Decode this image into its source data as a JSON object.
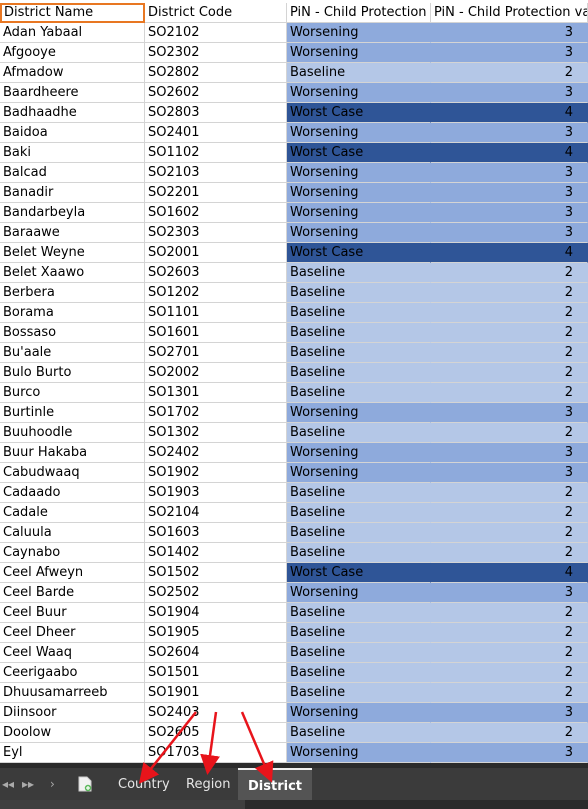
{
  "headers": [
    "District Name",
    "District Code",
    "PiN - Child Protection",
    "PiN - Child Protection valu"
  ],
  "severity_colors": {
    "Worsening": "#8eaadc",
    "Baseline": "#b4c7e7",
    "Worst Case": "#2f5597"
  },
  "rows": [
    {
      "name": "Adan Yabaal",
      "code": "SO2102",
      "status": "Worsening",
      "value": "3"
    },
    {
      "name": "Afgooye",
      "code": "SO2302",
      "status": "Worsening",
      "value": "3"
    },
    {
      "name": "Afmadow",
      "code": "SO2802",
      "status": "Baseline",
      "value": "2"
    },
    {
      "name": "Baardheere",
      "code": "SO2602",
      "status": "Worsening",
      "value": "3"
    },
    {
      "name": "Badhaadhe",
      "code": "SO2803",
      "status": "Worst Case",
      "value": "4"
    },
    {
      "name": "Baidoa",
      "code": "SO2401",
      "status": "Worsening",
      "value": "3"
    },
    {
      "name": "Baki",
      "code": "SO1102",
      "status": "Worst Case",
      "value": "4"
    },
    {
      "name": "Balcad",
      "code": "SO2103",
      "status": "Worsening",
      "value": "3"
    },
    {
      "name": "Banadir",
      "code": "SO2201",
      "status": "Worsening",
      "value": "3"
    },
    {
      "name": "Bandarbeyla",
      "code": "SO1602",
      "status": "Worsening",
      "value": "3"
    },
    {
      "name": "Baraawe",
      "code": "SO2303",
      "status": "Worsening",
      "value": "3"
    },
    {
      "name": "Belet Weyne",
      "code": "SO2001",
      "status": "Worst Case",
      "value": "4"
    },
    {
      "name": "Belet Xaawo",
      "code": "SO2603",
      "status": "Baseline",
      "value": "2"
    },
    {
      "name": "Berbera",
      "code": "SO1202",
      "status": "Baseline",
      "value": "2"
    },
    {
      "name": "Borama",
      "code": "SO1101",
      "status": "Baseline",
      "value": "2"
    },
    {
      "name": "Bossaso",
      "code": "SO1601",
      "status": "Baseline",
      "value": "2"
    },
    {
      "name": "Bu'aale",
      "code": "SO2701",
      "status": "Baseline",
      "value": "2"
    },
    {
      "name": "Bulo Burto",
      "code": "SO2002",
      "status": "Baseline",
      "value": "2"
    },
    {
      "name": "Burco",
      "code": "SO1301",
      "status": "Baseline",
      "value": "2"
    },
    {
      "name": "Burtinle",
      "code": "SO1702",
      "status": "Worsening",
      "value": "3"
    },
    {
      "name": "Buuhoodle",
      "code": "SO1302",
      "status": "Baseline",
      "value": "2"
    },
    {
      "name": "Buur Hakaba",
      "code": "SO2402",
      "status": "Worsening",
      "value": "3"
    },
    {
      "name": "Cabudwaaq",
      "code": "SO1902",
      "status": "Worsening",
      "value": "3"
    },
    {
      "name": "Cadaado",
      "code": "SO1903",
      "status": "Baseline",
      "value": "2"
    },
    {
      "name": "Cadale",
      "code": "SO2104",
      "status": "Baseline",
      "value": "2"
    },
    {
      "name": "Caluula",
      "code": "SO1603",
      "status": "Baseline",
      "value": "2"
    },
    {
      "name": "Caynabo",
      "code": "SO1402",
      "status": "Baseline",
      "value": "2"
    },
    {
      "name": "Ceel Afweyn",
      "code": "SO1502",
      "status": "Worst Case",
      "value": "4"
    },
    {
      "name": "Ceel Barde",
      "code": "SO2502",
      "status": "Worsening",
      "value": "3"
    },
    {
      "name": "Ceel Buur",
      "code": "SO1904",
      "status": "Baseline",
      "value": "2"
    },
    {
      "name": "Ceel Dheer",
      "code": "SO1905",
      "status": "Baseline",
      "value": "2"
    },
    {
      "name": "Ceel Waaq",
      "code": "SO2604",
      "status": "Baseline",
      "value": "2"
    },
    {
      "name": "Ceerigaabo",
      "code": "SO1501",
      "status": "Baseline",
      "value": "2"
    },
    {
      "name": "Dhuusamarreeb",
      "code": "SO1901",
      "status": "Baseline",
      "value": "2"
    },
    {
      "name": "Diinsoor",
      "code": "SO2403",
      "status": "Worsening",
      "value": "3"
    },
    {
      "name": "Doolow",
      "code": "SO2605",
      "status": "Baseline",
      "value": "2"
    },
    {
      "name": "Eyl",
      "code": "SO1703",
      "status": "Worsening",
      "value": "3"
    }
  ],
  "sheet_tabs": [
    {
      "label": "Country",
      "active": false
    },
    {
      "label": "Region",
      "active": false
    },
    {
      "label": "District",
      "active": true
    }
  ],
  "annotation_color": "#e8141b"
}
